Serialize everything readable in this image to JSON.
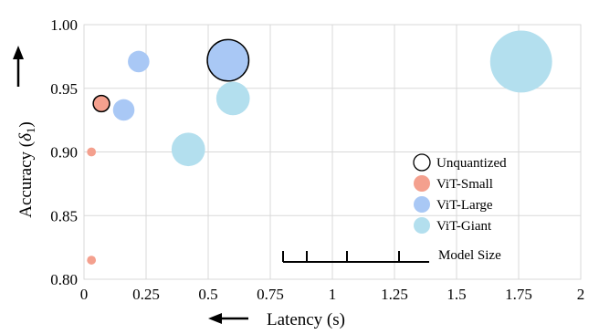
{
  "chart_data": {
    "type": "scatter",
    "bubble": true,
    "xlabel": "Latency (s)",
    "ylabel_main": "Accuracy (",
    "ylabel_symbol": "δ",
    "ylabel_sub": "1",
    "ylabel_tail": ")",
    "xlim": [
      0,
      2
    ],
    "ylim": [
      0.8,
      1.0
    ],
    "x_ticks": [
      0,
      0.25,
      0.5,
      0.75,
      1,
      1.25,
      1.5,
      1.75,
      2
    ],
    "x_tick_labels": [
      "0",
      "0.25",
      "0.5",
      "0.75",
      "1",
      "1.25",
      "1.5",
      "1.75",
      "2"
    ],
    "y_ticks": [
      0.8,
      0.85,
      0.9,
      0.95,
      1.0
    ],
    "y_tick_labels": [
      "0.80",
      "0.85",
      "0.90",
      "0.95",
      "1.00"
    ],
    "grid": true,
    "legend_placement": "right",
    "series": [
      {
        "name": "ViT-Small",
        "color": "#f4a08e",
        "points": [
          {
            "x": 0.03,
            "y": 0.815,
            "size": 0.6
          },
          {
            "x": 0.03,
            "y": 0.9,
            "size": 0.6
          },
          {
            "x": 0.07,
            "y": 0.938,
            "size": 2
          }
        ]
      },
      {
        "name": "ViT-Large",
        "color": "#a9c8f5",
        "points": [
          {
            "x": 0.16,
            "y": 0.933,
            "size": 3.5
          },
          {
            "x": 0.22,
            "y": 0.971,
            "size": 3.5
          },
          {
            "x": 0.58,
            "y": 0.972,
            "size": 13
          }
        ]
      },
      {
        "name": "ViT-Giant",
        "color": "#b3dfee",
        "points": [
          {
            "x": 0.42,
            "y": 0.902,
            "size": 8.5
          },
          {
            "x": 0.6,
            "y": 0.942,
            "size": 8.5
          },
          {
            "x": 1.76,
            "y": 0.971,
            "size": 29
          }
        ]
      }
    ],
    "unquantized": [
      {
        "x": 0.07,
        "y": 0.938
      },
      {
        "x": 0.58,
        "y": 0.972
      }
    ],
    "legend": [
      {
        "label": "Unquantized",
        "style": "outline"
      },
      {
        "label": "ViT-Small",
        "color": "#f4a08e"
      },
      {
        "label": "ViT-Large",
        "color": "#a9c8f5"
      },
      {
        "label": "ViT-Giant",
        "color": "#b3dfee"
      }
    ],
    "model_size_label": "Model Size"
  }
}
